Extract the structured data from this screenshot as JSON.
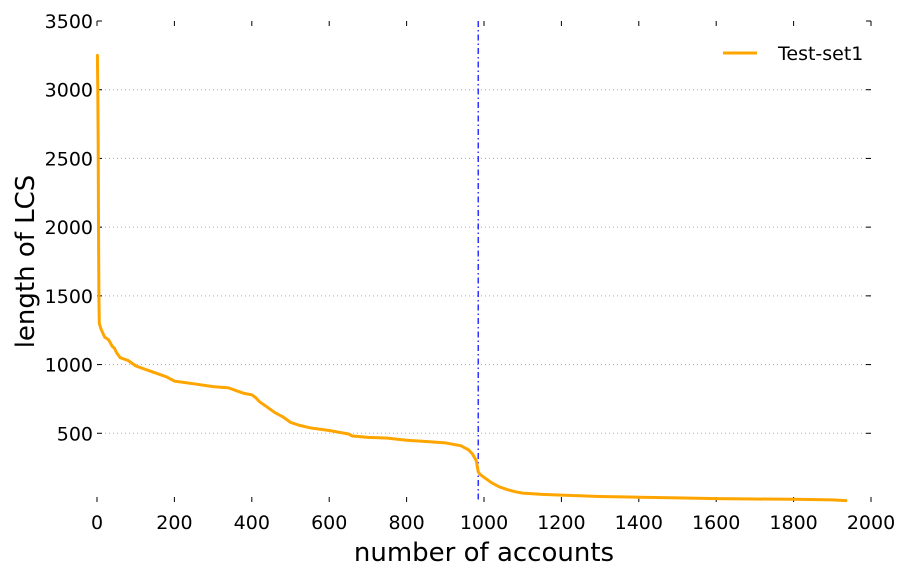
{
  "chart_data": {
    "type": "line",
    "title": "",
    "xlabel": "number of accounts",
    "ylabel": "length of LCS",
    "xlim": [
      0,
      2000
    ],
    "ylim": [
      0,
      3500
    ],
    "xticks": [
      0,
      200,
      400,
      600,
      800,
      1000,
      1200,
      1400,
      1600,
      1800,
      2000
    ],
    "xtick_labels": [
      "0",
      "200",
      "400",
      "600",
      "800",
      "1000",
      "1200",
      "1400",
      "1600",
      "1800",
      "2000"
    ],
    "yticks": [
      500,
      1000,
      1500,
      2000,
      2500,
      3000,
      3500
    ],
    "ytick_labels": [
      "500",
      "1000",
      "1500",
      "2000",
      "2500",
      "3000",
      "3500"
    ],
    "grid": "horizontal dotted",
    "legend_position": "top-right",
    "vline": {
      "x": 985,
      "color": "#0000ff",
      "style": "dash-dot"
    },
    "series": [
      {
        "name": "Test-set1",
        "color": "#FFA500",
        "x": [
          1,
          2,
          3,
          4,
          5,
          6,
          8,
          10,
          15,
          20,
          30,
          40,
          45,
          50,
          60,
          70,
          80,
          100,
          120,
          150,
          180,
          200,
          250,
          300,
          340,
          360,
          380,
          400,
          410,
          420,
          440,
          460,
          480,
          490,
          500,
          520,
          550,
          600,
          650,
          660,
          700,
          750,
          800,
          850,
          900,
          920,
          940,
          960,
          970,
          980,
          985,
          990,
          1000,
          1020,
          1040,
          1060,
          1080,
          1100,
          1150,
          1200,
          1300,
          1400,
          1500,
          1600,
          1700,
          1800,
          1900,
          1935
        ],
        "y": [
          3250,
          3000,
          2600,
          2000,
          1500,
          1300,
          1280,
          1260,
          1230,
          1200,
          1180,
          1130,
          1120,
          1090,
          1050,
          1040,
          1030,
          990,
          970,
          940,
          910,
          880,
          860,
          840,
          830,
          810,
          790,
          780,
          760,
          730,
          690,
          650,
          620,
          600,
          580,
          560,
          540,
          520,
          495,
          480,
          470,
          465,
          450,
          440,
          430,
          420,
          410,
          380,
          350,
          300,
          220,
          200,
          180,
          140,
          110,
          90,
          75,
          65,
          55,
          50,
          40,
          35,
          30,
          25,
          22,
          20,
          15,
          10
        ]
      }
    ]
  }
}
